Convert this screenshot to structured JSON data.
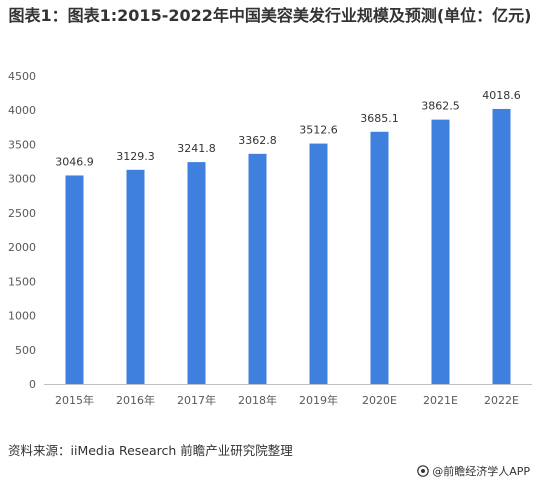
{
  "page": {
    "title": "图表1：图表1:2015-2022年中国美容美发行业规模及预测(单位：亿元)",
    "source": "资料来源：iiMedia Research 前瞻产业研究院整理",
    "app_badge": "@前瞻经济学人APP",
    "colors": {
      "bar": "#3F7FDD",
      "axis": "#BFBFBF",
      "text": "#333333",
      "background": "#FFFFFF"
    }
  },
  "chart_data": {
    "type": "bar",
    "title": "图表1：图表1:2015-2022年中国美容美发行业规模及预测(单位：亿元)",
    "xlabel": "",
    "ylabel": "",
    "categories": [
      "2015年",
      "2016年",
      "2017年",
      "2018年",
      "2019年",
      "2020E",
      "2021E",
      "2022E"
    ],
    "values": [
      3046.9,
      3129.3,
      3241.8,
      3362.8,
      3512.6,
      3685.1,
      3862.5,
      4018.6
    ],
    "value_labels": [
      "3046.9",
      "3129.3",
      "3241.8",
      "3362.8",
      "3512.6",
      "3685.1",
      "3862.5",
      "4018.6"
    ],
    "ylim": [
      0,
      4500
    ],
    "yticks": [
      0,
      500,
      1000,
      1500,
      2000,
      2500,
      3000,
      3500,
      4000,
      4500
    ],
    "grid": false,
    "legend": "none"
  }
}
